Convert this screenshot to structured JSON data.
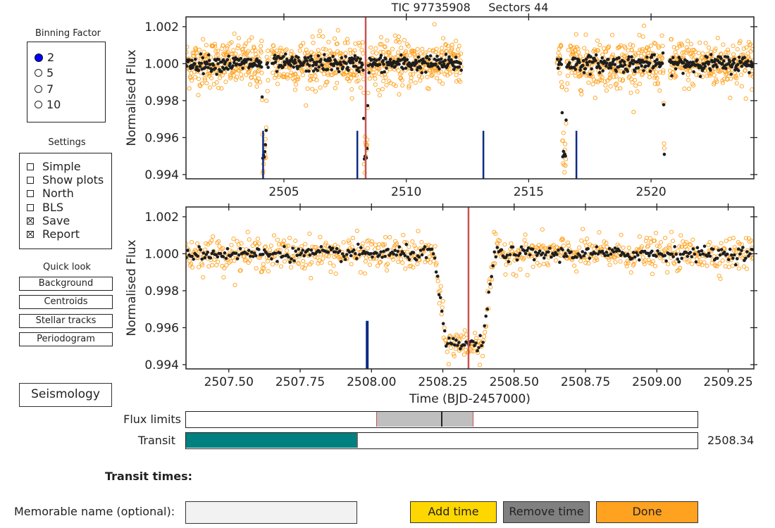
{
  "sidebar": {
    "binning": {
      "title": "Binning Factor",
      "options": [
        "2",
        "5",
        "7",
        "10"
      ],
      "selected_index": 0
    },
    "settings": {
      "title": "Settings",
      "items": [
        {
          "label": "Simple",
          "checked": false
        },
        {
          "label": "Show plots",
          "checked": false
        },
        {
          "label": "North",
          "checked": false
        },
        {
          "label": "BLS",
          "checked": false
        },
        {
          "label": "Save",
          "checked": true
        },
        {
          "label": "Report",
          "checked": true
        }
      ]
    },
    "quick_look": {
      "title": "Quick look",
      "buttons": [
        "Background",
        "Centroids",
        "Stellar tracks",
        "Periodogram"
      ]
    },
    "seismology_label": "Seismology"
  },
  "chart_data": [
    {
      "type": "scatter",
      "title": "TIC 97735908     Sectors 44",
      "ylabel": "Normalised Flux",
      "xlabel": "",
      "xlim": [
        2501.0,
        2524.2
      ],
      "ylim": [
        0.99377,
        1.00253
      ],
      "xticks": [
        "2505",
        "2510",
        "2515",
        "2520"
      ],
      "yticks": [
        "0.994",
        "0.996",
        "0.998",
        "1.000",
        "1.002"
      ],
      "gaps": [
        [
          2504.38,
          2504.5
        ],
        [
          2512.25,
          2516.15
        ],
        [
          2520.55,
          2520.75
        ]
      ],
      "transit_centers": [
        2504.2,
        2508.34,
        2516.45,
        2520.6
      ],
      "transit_depth": 0.0049,
      "series": [
        {
          "name": "",
          "color": "#ffa21f",
          "marker": "open-circle",
          "values": "scatter about 1.000 with sigma 0.0006"
        },
        {
          "name": "",
          "color": "#222222",
          "marker": "filled-circle",
          "values": "binned about 1.000"
        }
      ],
      "marker_lines_blue": [
        2504.15,
        2508.0,
        2513.15,
        2516.95
      ],
      "marker_line_red": 2508.34
    },
    {
      "type": "scatter",
      "title": "",
      "ylabel": "Normalised Flux",
      "xlabel": "Time (BJD-2457000)",
      "xlim": [
        2507.35,
        2509.34
      ],
      "ylim": [
        0.99377,
        1.00253
      ],
      "xticks": [
        "2507.50",
        "2507.75",
        "2508.00",
        "2508.25",
        "2508.50",
        "2508.75",
        "2509.00",
        "2509.25"
      ],
      "yticks": [
        "0.994",
        "0.996",
        "0.998",
        "1.000",
        "1.002"
      ],
      "transit": {
        "ingress_start": 2508.22,
        "flat_start": 2508.26,
        "flat_end": 2508.39,
        "egress_end": 2508.45,
        "depth": 0.0049
      },
      "marker_line_blue": 2507.985,
      "marker_line_red": 2508.34
    }
  ],
  "sliders": {
    "flux_limits": {
      "label": "Flux limits"
    },
    "transit": {
      "label": "Transit",
      "value_text": "2508.34",
      "fraction": 0.337
    }
  },
  "transit_times_label": "Transit times:",
  "memorable_name": {
    "label": "Memorable name (optional):",
    "value": ""
  },
  "buttons": {
    "add": {
      "label": "Add time",
      "color": "#ffd700"
    },
    "remove": {
      "label": "Remove time",
      "color": "#808080"
    },
    "done": {
      "label": "Done",
      "color": "#ffa21f"
    }
  },
  "colors": {
    "orange": "#ffa21f",
    "blue": "#0e2a84",
    "red": "#c85450",
    "teal": "#00807f"
  }
}
